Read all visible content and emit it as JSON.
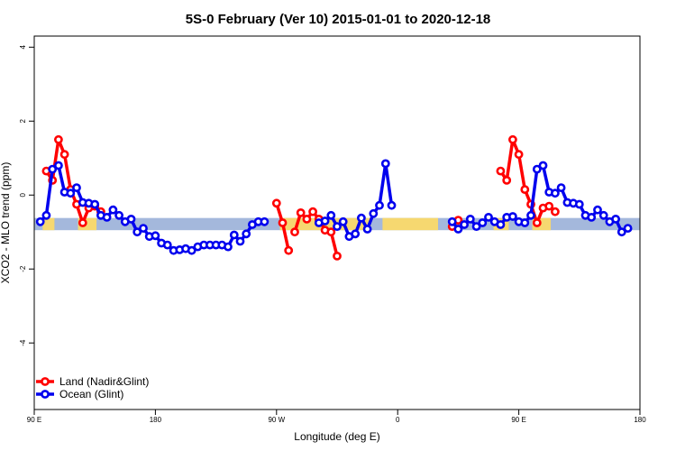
{
  "chart_data": {
    "type": "line",
    "title": "5S-0 February (Ver 10)   2015-01-01 to 2020-12-18",
    "xlabel": "Longitude (deg E)",
    "ylabel": "XCO2 - MLO trend (ppm)",
    "xlim": [
      90,
      450
    ],
    "ylim": [
      -5.8,
      4.3
    ],
    "x_ticks": [
      90,
      162,
      234,
      306,
      378,
      450
    ],
    "x_tick_labels": [
      "90 E",
      "180",
      "90 W",
      "0",
      "90 E",
      "180"
    ],
    "y_ticks": [
      -4,
      -2,
      0,
      2,
      4
    ],
    "y_tick_labels": [
      "-4",
      "-2",
      "0",
      "2",
      "4"
    ],
    "legend": "bottom-left",
    "series": [
      {
        "name": "Land (Nadir&Glint)",
        "color": "#ff0000",
        "segments": [
          [
            [
              97.2,
              0.65
            ],
            [
              100.8,
              0.4
            ],
            [
              104.4,
              1.5
            ],
            [
              108,
              1.1
            ],
            [
              111.6,
              0.15
            ],
            [
              115.2,
              -0.25
            ],
            [
              118.8,
              -0.75
            ],
            [
              122.4,
              -0.35
            ],
            [
              126,
              -0.3
            ],
            [
              129.6,
              -0.45
            ]
          ],
          [
            [
              234,
              -0.22
            ],
            [
              237.6,
              -0.75
            ],
            [
              241.2,
              -1.5
            ]
          ],
          [
            [
              244.8,
              -1.0
            ],
            [
              248.4,
              -0.48
            ],
            [
              252,
              -0.65
            ],
            [
              255.6,
              -0.45
            ],
            [
              259.2,
              -0.65
            ],
            [
              262.8,
              -0.95
            ],
            [
              266.4,
              -1.0
            ],
            [
              270,
              -1.65
            ]
          ],
          [
            [
              338.4,
              -0.85
            ],
            [
              342,
              -0.68
            ]
          ],
          [
            [
              367.2,
              0.65
            ],
            [
              370.8,
              0.4
            ],
            [
              374.4,
              1.5
            ],
            [
              378,
              1.1
            ],
            [
              381.6,
              0.15
            ],
            [
              385.2,
              -0.25
            ],
            [
              388.8,
              -0.75
            ],
            [
              392.4,
              -0.35
            ],
            [
              396,
              -0.3
            ],
            [
              399.6,
              -0.45
            ]
          ]
        ]
      },
      {
        "name": "Ocean (Glint)",
        "color": "#0000ee",
        "segments": [
          [
            [
              93.6,
              -0.72
            ],
            [
              97.2,
              -0.55
            ],
            [
              100.8,
              0.7
            ],
            [
              104.4,
              0.8
            ],
            [
              108,
              0.08
            ],
            [
              111.6,
              0.05
            ],
            [
              115.2,
              0.2
            ],
            [
              118.8,
              -0.2
            ],
            [
              122.4,
              -0.22
            ],
            [
              126,
              -0.25
            ],
            [
              129.6,
              -0.55
            ],
            [
              133.2,
              -0.6
            ],
            [
              136.8,
              -0.4
            ],
            [
              140.4,
              -0.55
            ],
            [
              144,
              -0.72
            ],
            [
              147.6,
              -0.65
            ],
            [
              151.2,
              -1.0
            ],
            [
              154.8,
              -0.9
            ],
            [
              158.4,
              -1.12
            ],
            [
              162,
              -1.1
            ],
            [
              165.6,
              -1.3
            ],
            [
              169.2,
              -1.35
            ],
            [
              172.8,
              -1.5
            ],
            [
              176.4,
              -1.48
            ],
            [
              180,
              -1.45
            ],
            [
              183.6,
              -1.5
            ],
            [
              187.2,
              -1.4
            ],
            [
              190.8,
              -1.35
            ],
            [
              194.4,
              -1.35
            ],
            [
              198,
              -1.35
            ],
            [
              201.6,
              -1.35
            ],
            [
              205.2,
              -1.4
            ],
            [
              208.8,
              -1.08
            ],
            [
              212.4,
              -1.25
            ],
            [
              216,
              -1.05
            ],
            [
              219.6,
              -0.8
            ],
            [
              223.2,
              -0.72
            ],
            [
              226.8,
              -0.72
            ]
          ],
          [
            [
              259.2,
              -0.75
            ],
            [
              262.8,
              -0.7
            ],
            [
              266.4,
              -0.55
            ],
            [
              270,
              -0.85
            ],
            [
              273.6,
              -0.72
            ],
            [
              277.2,
              -1.12
            ],
            [
              280.8,
              -1.05
            ],
            [
              284.4,
              -0.62
            ],
            [
              288,
              -0.92
            ],
            [
              291.6,
              -0.5
            ],
            [
              295.2,
              -0.28
            ],
            [
              298.8,
              0.85
            ],
            [
              302.4,
              -0.28
            ]
          ],
          [
            [
              338.4,
              -0.72
            ],
            [
              342,
              -0.92
            ],
            [
              345.6,
              -0.8
            ],
            [
              349.2,
              -0.65
            ],
            [
              352.8,
              -0.85
            ],
            [
              356.4,
              -0.75
            ],
            [
              360,
              -0.6
            ],
            [
              363.6,
              -0.72
            ],
            [
              367.2,
              -0.8
            ],
            [
              370.8,
              -0.6
            ],
            [
              374.4,
              -0.58
            ],
            [
              378,
              -0.72
            ],
            [
              381.6,
              -0.75
            ],
            [
              385.2,
              -0.55
            ],
            [
              388.8,
              0.7
            ],
            [
              392.4,
              0.8
            ],
            [
              396,
              0.08
            ],
            [
              399.6,
              0.05
            ],
            [
              403.2,
              0.2
            ],
            [
              406.8,
              -0.2
            ],
            [
              410.4,
              -0.22
            ],
            [
              414,
              -0.25
            ],
            [
              417.6,
              -0.55
            ],
            [
              421.2,
              -0.6
            ],
            [
              424.8,
              -0.4
            ],
            [
              428.4,
              -0.55
            ],
            [
              432,
              -0.72
            ],
            [
              435.6,
              -0.65
            ],
            [
              439.2,
              -1.0
            ],
            [
              442.8,
              -0.9
            ]
          ]
        ]
      }
    ],
    "band": {
      "y_min": -0.95,
      "y_max": -0.62,
      "ocean_color": "#a4b8dc",
      "land_color": "#f6d870",
      "land_ranges": [
        [
          95,
          102
        ],
        [
          116,
          127
        ],
        [
          236,
          290
        ],
        [
          297,
          330
        ],
        [
          363,
          372
        ],
        [
          386,
          397
        ]
      ]
    }
  }
}
